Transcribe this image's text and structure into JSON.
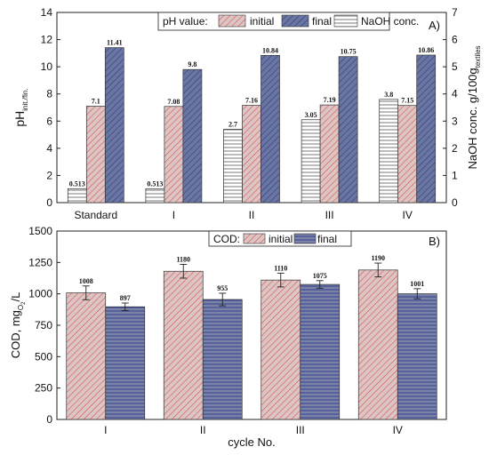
{
  "colors": {
    "initial_fill": "#dcc5c5",
    "initial_hatch": "#d9534f",
    "final_fill": "#6b76a0",
    "final_hatch": "#2b3a8a",
    "cod_final_fill": "#7b82a8",
    "naoh_fill": "#ffffff",
    "naoh_hatch": "#555555"
  },
  "chart_data": [
    {
      "panel": "A)",
      "type": "bar",
      "categories": [
        "Standard",
        "I",
        "II",
        "III",
        "IV"
      ],
      "ylabel_left_main": "pH",
      "ylabel_left_sub": "init./fin.",
      "ylabel_right_main": "NaOH conc. g/100g",
      "ylabel_right_sub": "textiles",
      "ylim_left": [
        0,
        14
      ],
      "ylim_right": [
        0,
        7
      ],
      "yticks_left": [
        0,
        2,
        4,
        6,
        8,
        10,
        12,
        14
      ],
      "yticks_right": [
        0,
        1,
        2,
        3,
        4,
        5,
        6,
        7
      ],
      "legend": {
        "prefix": "pH value:",
        "placement": "top-center"
      },
      "grid": false,
      "series": [
        {
          "name": "NaOH conc.",
          "axis": "right",
          "values": [
            0.513,
            0.513,
            2.7,
            3.05,
            3.8
          ],
          "labels": [
            "0.513",
            "0.513",
            "2.7",
            "3.05",
            "3.8"
          ]
        },
        {
          "name": "initial",
          "axis": "left",
          "values": [
            7.1,
            7.08,
            7.16,
            7.19,
            7.15
          ],
          "labels": [
            "7.1",
            "7.08",
            "7.16",
            "7.19",
            "7.15"
          ]
        },
        {
          "name": "final",
          "axis": "left",
          "values": [
            11.41,
            9.8,
            10.84,
            10.75,
            10.86
          ],
          "labels": [
            "11.41",
            "9.8",
            "10.84",
            "10.75",
            "10.86"
          ]
        }
      ]
    },
    {
      "panel": "B)",
      "type": "bar",
      "categories": [
        "I",
        "II",
        "III",
        "IV"
      ],
      "xlabel": "cycle No.",
      "ylabel_main": "COD, mg",
      "ylabel_sub": "O",
      "ylabel_sub_suffix": "2",
      "ylabel_tail": "/L",
      "ylim": [
        0,
        1500
      ],
      "yticks": [
        0,
        250,
        500,
        750,
        1000,
        1250,
        1500
      ],
      "legend": {
        "prefix": "COD:",
        "placement": "top-center"
      },
      "grid": false,
      "series": [
        {
          "name": "initial",
          "values": [
            1008,
            1180,
            1110,
            1190
          ],
          "errors": [
            55,
            55,
            55,
            55
          ],
          "labels": [
            "1008",
            "1180",
            "1110",
            "1190"
          ]
        },
        {
          "name": "final",
          "values": [
            897,
            955,
            1075,
            1001
          ],
          "errors": [
            30,
            50,
            30,
            40
          ],
          "labels": [
            "897",
            "955",
            "1075",
            "1001"
          ]
        }
      ]
    }
  ]
}
